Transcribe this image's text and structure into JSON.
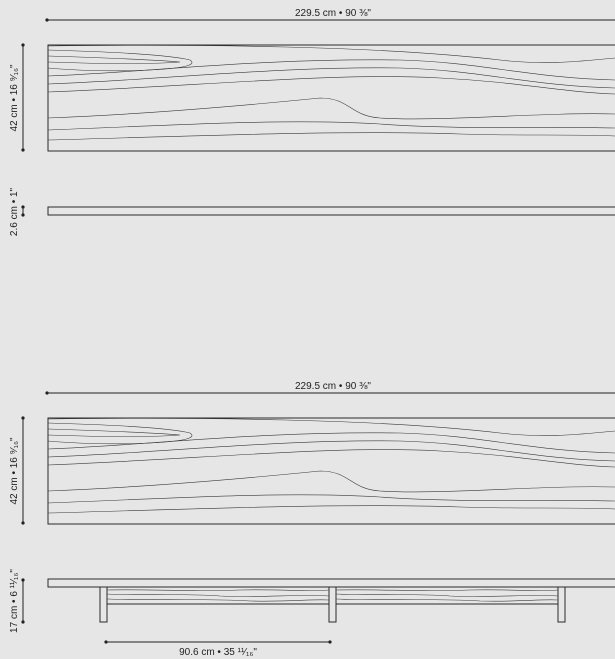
{
  "views": {
    "top_view_1": {
      "width_label": "229.5 cm  •  90 ⅜\"",
      "depth_label": "42 cm  •  16 ⁹⁄₁₆\""
    },
    "edge_view": {
      "thickness_label": "2.6 cm  •  1\""
    },
    "top_view_2": {
      "width_label": "229.5 cm  •  90 ⅜\"",
      "depth_label": "42 cm  •  16 ⁹⁄₁₆\""
    },
    "front_view": {
      "height_label": "17 cm  •  6 ¹¹⁄₁₆\"",
      "leg_spacing_label": "90.6 cm  •  35 ¹¹⁄₁₆\""
    }
  },
  "colors": {
    "background": "#e6e6e6",
    "line": "#2a2a2a"
  }
}
